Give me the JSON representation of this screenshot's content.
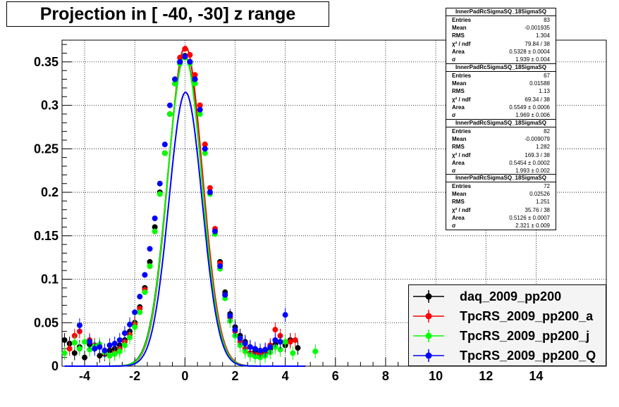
{
  "title": "Projection in [ -40, -30] z range",
  "chart_data": {
    "type": "scatter",
    "title": "Projection in [ -40, -30] z range",
    "xlabel": "",
    "ylabel": "",
    "xlim": [
      -4.9,
      16.8
    ],
    "ylim": [
      0,
      0.375
    ],
    "x_ticks": [
      -4,
      -2,
      0,
      2,
      4,
      6,
      8,
      10,
      12,
      14
    ],
    "x_tick_labels": [
      "-4",
      "-2",
      "0",
      "2",
      "4",
      "6",
      "8",
      "10",
      "12",
      "14"
    ],
    "y_ticks": [
      0,
      0.05,
      0.1,
      0.15,
      0.2,
      0.25,
      0.3,
      0.35
    ],
    "y_tick_labels": [
      "0",
      "0.05",
      "0.1",
      "0.15",
      "0.2",
      "0.25",
      "0.3",
      "0.35"
    ],
    "grid": true,
    "legend_placement": "bottom-right",
    "series": [
      {
        "name": "daq_2009_pp200",
        "color": "#000000",
        "fit": {
          "amplitude": 0.357,
          "mean": -0.002,
          "sigma": 0.69
        },
        "points": [
          [
            -4.8,
            0.03
          ],
          [
            -4.6,
            0.026
          ],
          [
            -4.4,
            0.015
          ],
          [
            -4.2,
            0.022
          ],
          [
            -4.0,
            0.01
          ],
          [
            -3.8,
            0.025
          ],
          [
            -3.6,
            0.024
          ],
          [
            -3.4,
            0.012
          ],
          [
            -3.2,
            0.014
          ],
          [
            -3.0,
            0.018
          ],
          [
            -2.8,
            0.02
          ],
          [
            -2.6,
            0.024
          ],
          [
            -2.4,
            0.03
          ],
          [
            -2.2,
            0.04
          ],
          [
            -2.0,
            0.05
          ],
          [
            -1.8,
            0.068
          ],
          [
            -1.6,
            0.09
          ],
          [
            -1.4,
            0.12
          ],
          [
            -1.2,
            0.16
          ],
          [
            -1.0,
            0.2
          ],
          [
            -0.8,
            0.245
          ],
          [
            -0.6,
            0.29
          ],
          [
            -0.4,
            0.325
          ],
          [
            -0.2,
            0.348
          ],
          [
            0.0,
            0.357
          ],
          [
            0.2,
            0.35
          ],
          [
            0.4,
            0.33
          ],
          [
            0.6,
            0.3
          ],
          [
            0.8,
            0.255
          ],
          [
            1.0,
            0.2
          ],
          [
            1.2,
            0.155
          ],
          [
            1.4,
            0.12
          ],
          [
            1.6,
            0.085
          ],
          [
            1.8,
            0.06
          ],
          [
            2.0,
            0.045
          ],
          [
            2.2,
            0.035
          ],
          [
            2.4,
            0.028
          ],
          [
            2.6,
            0.022
          ],
          [
            2.8,
            0.018
          ],
          [
            3.0,
            0.015
          ],
          [
            3.2,
            0.016
          ],
          [
            3.4,
            0.02
          ],
          [
            3.6,
            0.025
          ],
          [
            3.8,
            0.028
          ],
          [
            4.0,
            0.024
          ],
          [
            4.2,
            0.03
          ],
          [
            4.5,
            0.021
          ]
        ]
      },
      {
        "name": "TpcRS_2009_pp200_a",
        "color": "#ff0000",
        "fit": {
          "amplitude": 0.368,
          "mean": 0.016,
          "sigma": 0.68
        },
        "points": [
          [
            -4.6,
            0.02
          ],
          [
            -4.4,
            0.035
          ],
          [
            -4.2,
            0.04
          ],
          [
            -3.8,
            0.03
          ],
          [
            -3.6,
            0.024
          ],
          [
            -3.2,
            0.015
          ],
          [
            -3.0,
            0.012
          ],
          [
            -2.8,
            0.015
          ],
          [
            -2.6,
            0.02
          ],
          [
            -2.4,
            0.028
          ],
          [
            -2.2,
            0.036
          ],
          [
            -2.0,
            0.048
          ],
          [
            -1.8,
            0.066
          ],
          [
            -1.6,
            0.088
          ],
          [
            -1.4,
            0.115
          ],
          [
            -1.2,
            0.155
          ],
          [
            -1.0,
            0.198
          ],
          [
            -0.8,
            0.245
          ],
          [
            -0.6,
            0.29
          ],
          [
            -0.4,
            0.33
          ],
          [
            -0.2,
            0.355
          ],
          [
            0.0,
            0.365
          ],
          [
            0.2,
            0.358
          ],
          [
            0.4,
            0.335
          ],
          [
            0.6,
            0.3
          ],
          [
            0.8,
            0.255
          ],
          [
            1.0,
            0.205
          ],
          [
            1.2,
            0.158
          ],
          [
            1.4,
            0.118
          ],
          [
            1.6,
            0.082
          ],
          [
            1.8,
            0.056
          ],
          [
            2.0,
            0.04
          ],
          [
            2.2,
            0.028
          ],
          [
            2.4,
            0.02
          ],
          [
            2.6,
            0.015
          ],
          [
            2.8,
            0.013
          ],
          [
            3.0,
            0.014
          ],
          [
            3.2,
            0.018
          ],
          [
            3.4,
            0.024
          ],
          [
            3.6,
            0.042
          ],
          [
            3.8,
            0.035
          ],
          [
            4.2,
            0.028
          ],
          [
            4.4,
            0.03
          ]
        ]
      },
      {
        "name": "TpcRS_2009_pp200_j",
        "color": "#00ff00",
        "fit": {
          "amplitude": 0.357,
          "mean": -0.009,
          "sigma": 0.68
        },
        "points": [
          [
            -4.8,
            0.015
          ],
          [
            -4.4,
            0.027
          ],
          [
            -4.2,
            0.02
          ],
          [
            -4.0,
            0.028
          ],
          [
            -3.8,
            0.019
          ],
          [
            -3.6,
            0.023
          ],
          [
            -3.4,
            0.025
          ],
          [
            -3.2,
            0.016
          ],
          [
            -3.0,
            0.012
          ],
          [
            -2.8,
            0.014
          ],
          [
            -2.6,
            0.017
          ],
          [
            -2.4,
            0.024
          ],
          [
            -2.2,
            0.033
          ],
          [
            -2.0,
            0.045
          ],
          [
            -1.8,
            0.062
          ],
          [
            -1.6,
            0.085
          ],
          [
            -1.4,
            0.115
          ],
          [
            -1.2,
            0.155
          ],
          [
            -1.0,
            0.198
          ],
          [
            -0.8,
            0.245
          ],
          [
            -0.6,
            0.29
          ],
          [
            -0.4,
            0.325
          ],
          [
            -0.2,
            0.348
          ],
          [
            0.0,
            0.355
          ],
          [
            0.2,
            0.348
          ],
          [
            0.4,
            0.325
          ],
          [
            0.6,
            0.29
          ],
          [
            0.8,
            0.245
          ],
          [
            1.0,
            0.198
          ],
          [
            1.2,
            0.152
          ],
          [
            1.4,
            0.112
          ],
          [
            1.6,
            0.078
          ],
          [
            1.8,
            0.052
          ],
          [
            2.0,
            0.035
          ],
          [
            2.2,
            0.024
          ],
          [
            2.4,
            0.017
          ],
          [
            2.6,
            0.013
          ],
          [
            2.8,
            0.011
          ],
          [
            3.0,
            0.01
          ],
          [
            3.2,
            0.012
          ],
          [
            3.4,
            0.016
          ],
          [
            3.6,
            0.022
          ],
          [
            3.8,
            0.019
          ],
          [
            4.0,
            0.028
          ],
          [
            4.3,
            0.015
          ],
          [
            5.2,
            0.017
          ]
        ]
      },
      {
        "name": "TpcRS_2009_pp200_Q",
        "color": "#0000ff",
        "fit": {
          "amplitude": 0.315,
          "mean": 0.025,
          "sigma": 0.66
        },
        "points": [
          [
            -4.2,
            0.047
          ],
          [
            -3.8,
            0.028
          ],
          [
            -3.6,
            0.02
          ],
          [
            -3.4,
            0.022
          ],
          [
            -3.2,
            0.018
          ],
          [
            -3.0,
            0.024
          ],
          [
            -2.8,
            0.026
          ],
          [
            -2.6,
            0.03
          ],
          [
            -2.4,
            0.038
          ],
          [
            -2.2,
            0.048
          ],
          [
            -2.0,
            0.062
          ],
          [
            -1.8,
            0.08
          ],
          [
            -1.6,
            0.105
          ],
          [
            -1.4,
            0.135
          ],
          [
            -1.2,
            0.17
          ],
          [
            -1.0,
            0.21
          ],
          [
            -0.8,
            0.255
          ],
          [
            -0.6,
            0.3
          ],
          [
            -0.4,
            0.33
          ],
          [
            -0.2,
            0.35
          ],
          [
            0.0,
            0.356
          ],
          [
            0.2,
            0.35
          ],
          [
            0.4,
            0.33
          ],
          [
            0.6,
            0.295
          ],
          [
            0.8,
            0.25
          ],
          [
            1.0,
            0.2
          ],
          [
            1.2,
            0.155
          ],
          [
            1.4,
            0.115
          ],
          [
            1.6,
            0.082
          ],
          [
            1.8,
            0.058
          ],
          [
            2.0,
            0.042
          ],
          [
            2.2,
            0.032
          ],
          [
            2.4,
            0.026
          ],
          [
            2.6,
            0.022
          ],
          [
            2.8,
            0.02
          ],
          [
            3.0,
            0.018
          ],
          [
            3.2,
            0.019
          ],
          [
            3.4,
            0.022
          ],
          [
            3.6,
            0.03
          ],
          [
            3.8,
            0.028
          ],
          [
            4.0,
            0.059
          ]
        ]
      }
    ]
  },
  "stats_boxes": [
    {
      "title": "InnerPadRcSigmaSQ_18SigmaSQ",
      "rows": [
        {
          "k": "Entries",
          "v": "83"
        },
        {
          "k": "Mean",
          "v": "-0.001935"
        },
        {
          "k": "RMS",
          "v": "1.304"
        },
        {
          "k": "χ² / ndf",
          "v": "79.84 / 38"
        },
        {
          "k": "Area",
          "v": "0.5328 ± 0.0004"
        },
        {
          "k": "σ",
          "v": "1.939 ± 0.004"
        }
      ]
    },
    {
      "title": "InnerPadRcSigmaSQ_18SigmaSQ",
      "rows": [
        {
          "k": "Entries",
          "v": "67"
        },
        {
          "k": "Mean",
          "v": "0.01588"
        },
        {
          "k": "RMS",
          "v": "1.13"
        },
        {
          "k": "χ² / ndf",
          "v": "69.34 / 38"
        },
        {
          "k": "Area",
          "v": "0.5549 ± 0.0006"
        },
        {
          "k": "σ",
          "v": "1.969 ± 0.006"
        }
      ]
    },
    {
      "title": "InnerPadRcSigmaSQ_18SigmaSQ",
      "rows": [
        {
          "k": "Entries",
          "v": "82"
        },
        {
          "k": "Mean",
          "v": "-0.009079"
        },
        {
          "k": "RMS",
          "v": "1.282"
        },
        {
          "k": "χ² / ndf",
          "v": "169.3 / 38"
        },
        {
          "k": "Area",
          "v": "0.5454 ± 0.0002"
        },
        {
          "k": "σ",
          "v": "1.993 ± 0.002"
        }
      ]
    },
    {
      "title": "InnerPadRcSigmaSQ_18SigmaSQ",
      "rows": [
        {
          "k": "Entries",
          "v": "72"
        },
        {
          "k": "Mean",
          "v": "0.02526"
        },
        {
          "k": "RMS",
          "v": "1.251"
        },
        {
          "k": "χ² / ndf",
          "v": "35.76 / 38"
        },
        {
          "k": "Area",
          "v": "0.5126 ± 0.0007"
        },
        {
          "k": "σ",
          "v": "2.321 ± 0.009"
        }
      ]
    }
  ],
  "legend": [
    {
      "label": "daq_2009_pp200",
      "color": "#000000"
    },
    {
      "label": "TpcRS_2009_pp200_a",
      "color": "#ff0000"
    },
    {
      "label": "TpcRS_2009_pp200_j",
      "color": "#00ff00"
    },
    {
      "label": "TpcRS_2009_pp200_Q",
      "color": "#0000ff"
    }
  ]
}
